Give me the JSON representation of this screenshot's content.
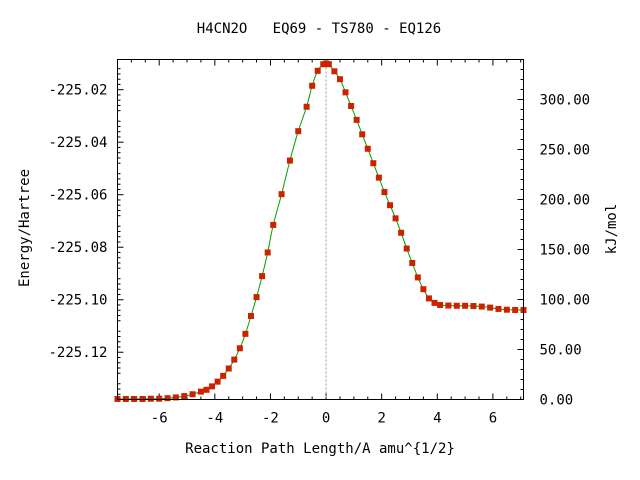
{
  "chart_data": {
    "type": "line",
    "title": "H4CN2O   EQ69 - TS780 - EQ126",
    "xlabel": "Reaction Path Length/A amu^{1/2}",
    "ylabel": "Energy/Hartree",
    "y2label": "kJ/mol",
    "xlim": [
      -7.5,
      7.1
    ],
    "ylim": [
      -225.138,
      -225.0085
    ],
    "y2lim": [
      0,
      340
    ],
    "x_ticks": [
      "-6",
      "-4",
      "-2",
      "0",
      "2",
      "4",
      "6"
    ],
    "y_ticks": [
      "-225.02",
      "-225.04",
      "-225.06",
      "-225.08",
      "-225.10",
      "-225.12"
    ],
    "y2_ticks": [
      "0.00",
      "50.00",
      "100.00",
      "150.00",
      "200.00",
      "250.00",
      "300.00"
    ],
    "ts_x": 0,
    "series": [
      {
        "line_color": "#00a000",
        "marker_color": "#cc2200",
        "points": [
          [
            -7.5,
            -225.1378
          ],
          [
            -7.2,
            -225.1378
          ],
          [
            -6.9,
            -225.1378
          ],
          [
            -6.6,
            -225.1378
          ],
          [
            -6.3,
            -225.1377
          ],
          [
            -6.0,
            -225.1377
          ],
          [
            -5.7,
            -225.1375
          ],
          [
            -5.4,
            -225.1372
          ],
          [
            -5.1,
            -225.1367
          ],
          [
            -4.8,
            -225.136
          ],
          [
            -4.5,
            -225.135
          ],
          [
            -4.3,
            -225.1343
          ],
          [
            -4.1,
            -225.133
          ],
          [
            -3.9,
            -225.1312
          ],
          [
            -3.7,
            -225.129
          ],
          [
            -3.5,
            -225.1262
          ],
          [
            -3.3,
            -225.1228
          ],
          [
            -3.1,
            -225.1185
          ],
          [
            -2.9,
            -225.113
          ],
          [
            -2.7,
            -225.1062
          ],
          [
            -2.5,
            -225.099
          ],
          [
            -2.3,
            -225.091
          ],
          [
            -2.1,
            -225.082
          ],
          [
            -1.9,
            -225.0715
          ],
          [
            -1.6,
            -225.0598
          ],
          [
            -1.3,
            -225.047
          ],
          [
            -1.0,
            -225.0358
          ],
          [
            -0.7,
            -225.0265
          ],
          [
            -0.5,
            -225.0185
          ],
          [
            -0.3,
            -225.0128
          ],
          [
            -0.1,
            -225.0103
          ],
          [
            0.0,
            -225.01
          ],
          [
            0.1,
            -225.0103
          ],
          [
            0.3,
            -225.013
          ],
          [
            0.5,
            -225.016
          ],
          [
            0.7,
            -225.021
          ],
          [
            0.9,
            -225.0262
          ],
          [
            1.1,
            -225.0315
          ],
          [
            1.3,
            -225.037
          ],
          [
            1.5,
            -225.0425
          ],
          [
            1.7,
            -225.048
          ],
          [
            1.9,
            -225.0535
          ],
          [
            2.1,
            -225.059
          ],
          [
            2.3,
            -225.064
          ],
          [
            2.5,
            -225.069
          ],
          [
            2.7,
            -225.0745
          ],
          [
            2.9,
            -225.0805
          ],
          [
            3.1,
            -225.086
          ],
          [
            3.3,
            -225.0915
          ],
          [
            3.5,
            -225.096
          ],
          [
            3.7,
            -225.0995
          ],
          [
            3.9,
            -225.1012
          ],
          [
            4.1,
            -225.102
          ],
          [
            4.4,
            -225.1022
          ],
          [
            4.7,
            -225.1023
          ],
          [
            5.0,
            -225.1023
          ],
          [
            5.3,
            -225.1024
          ],
          [
            5.6,
            -225.1026
          ],
          [
            5.9,
            -225.103
          ],
          [
            6.2,
            -225.1035
          ],
          [
            6.5,
            -225.1038
          ],
          [
            6.8,
            -225.1039
          ],
          [
            7.1,
            -225.1039
          ]
        ]
      }
    ]
  }
}
